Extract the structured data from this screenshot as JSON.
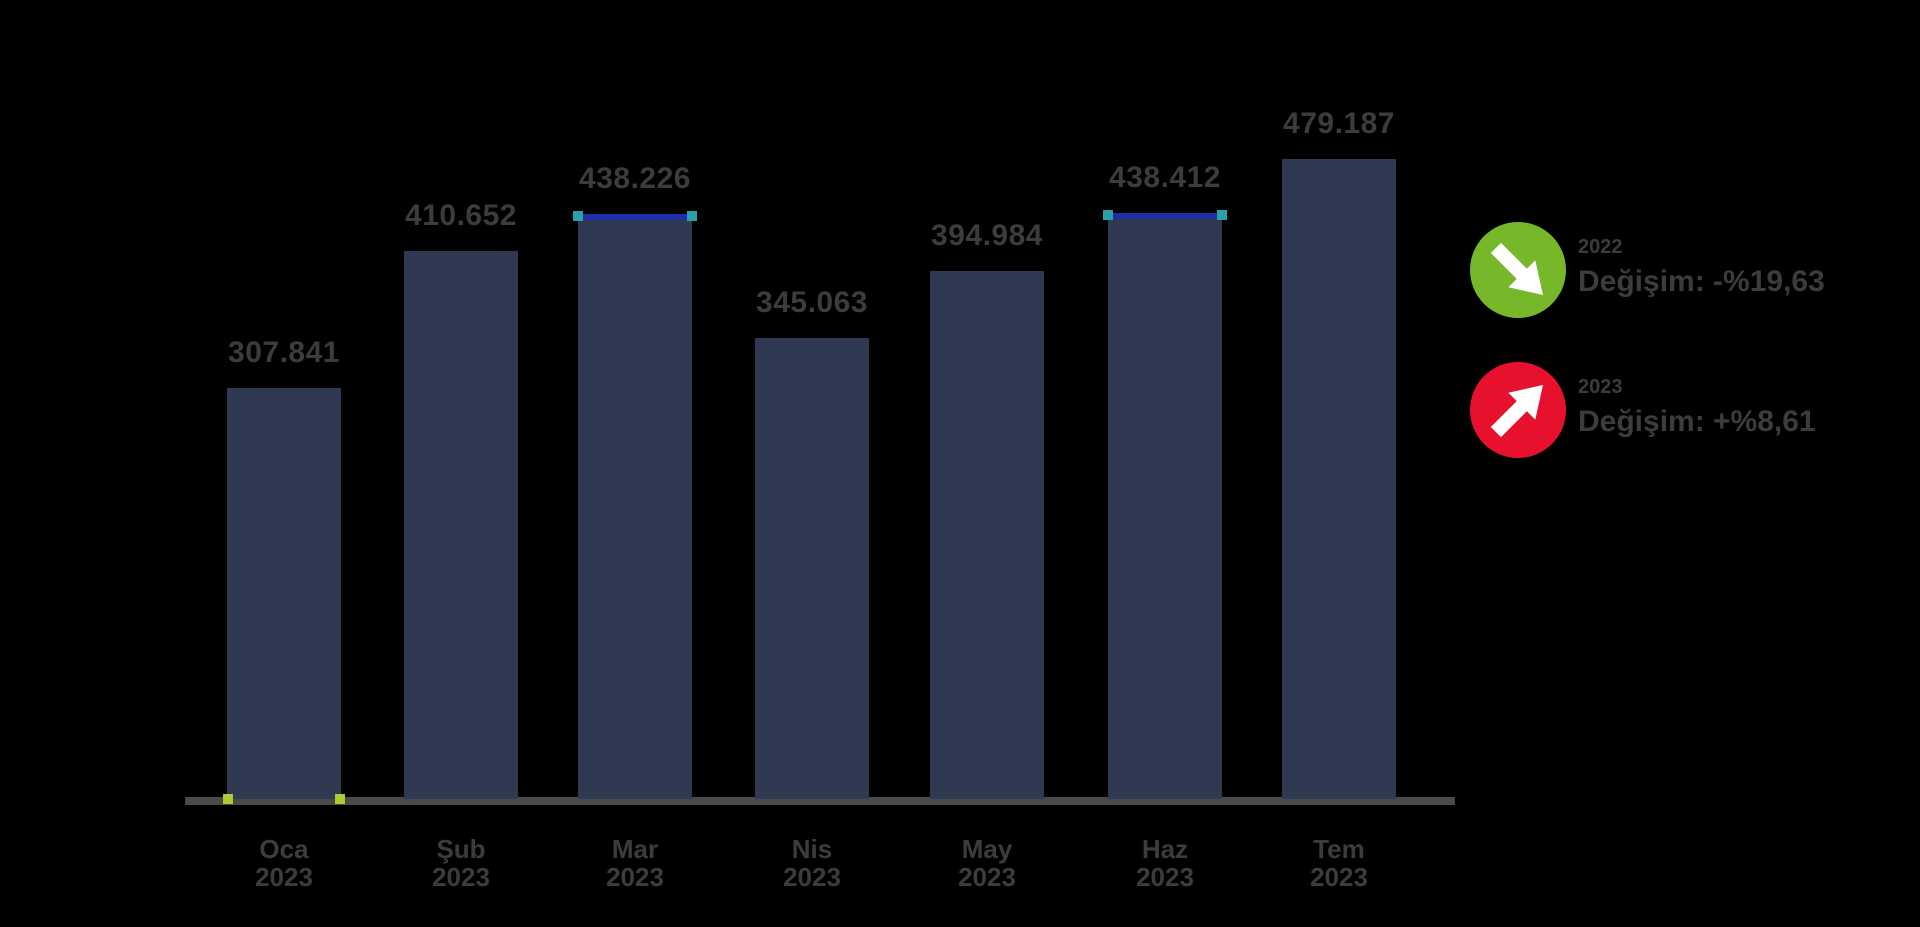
{
  "chart_data": {
    "type": "bar",
    "title": "",
    "xlabel": "",
    "ylabel": "",
    "grid": false,
    "ylim": [
      0,
      500000
    ],
    "categories": [
      {
        "line1": "Oca",
        "line2": "2023"
      },
      {
        "line1": "Şub",
        "line2": "2023"
      },
      {
        "line1": "Mar",
        "line2": "2023"
      },
      {
        "line1": "Nis",
        "line2": "2023"
      },
      {
        "line1": "May",
        "line2": "2023"
      },
      {
        "line1": "Haz",
        "line2": "2023"
      },
      {
        "line1": "Tem",
        "line2": "2023"
      }
    ],
    "values": [
      307841,
      410652,
      438226,
      345063,
      394984,
      438412,
      479187
    ],
    "value_labels": [
      "307.841",
      "410.652",
      "438.226",
      "345.063",
      "394.984",
      "438.412",
      "479.187"
    ],
    "colors": {
      "bar": "#2f3a52",
      "axis": "#4a4a4a",
      "label_text": "#3c3c3c",
      "cap_line": "#1f2fa8",
      "cap_handle": "#28a2a8",
      "selection_handle": "#aecb37"
    },
    "annotations": {
      "capped_bar_indices": [
        2,
        5
      ],
      "selected_bar_index": 0
    },
    "legend_position": "right"
  },
  "legend": {
    "items": [
      {
        "icon": "arrow-down-right-circle-icon",
        "circle_color": "#76b82a",
        "direction": "down-right",
        "line1": "2022",
        "line2": "Değişim: -%19,63"
      },
      {
        "icon": "arrow-up-right-circle-icon",
        "circle_color": "#e8112d",
        "direction": "up-right",
        "line1": "2023",
        "line2": "Değişim: +%8,61"
      }
    ]
  }
}
